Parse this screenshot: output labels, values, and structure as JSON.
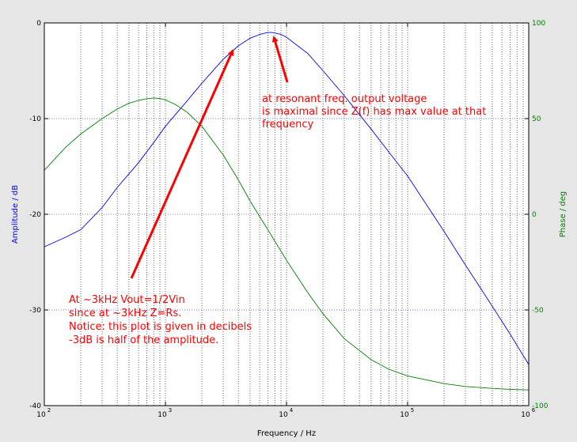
{
  "chart_data": {
    "type": "line",
    "xlabel": "Frequency / Hz",
    "ylabel_left": "Amplitude / dB",
    "ylabel_right": "Phase / deg",
    "x_scale": "log",
    "xlim": [
      100,
      1000000
    ],
    "ylim_left": [
      -40,
      0
    ],
    "ylim_right": [
      -100,
      100
    ],
    "x_ticks": [
      {
        "value": 100,
        "mantissa": "10",
        "exp": "2"
      },
      {
        "value": 1000,
        "mantissa": "10",
        "exp": "3"
      },
      {
        "value": 10000,
        "mantissa": "10",
        "exp": "4"
      },
      {
        "value": 100000,
        "mantissa": "10",
        "exp": "5"
      },
      {
        "value": 1000000,
        "mantissa": "10",
        "exp": "6"
      }
    ],
    "y_ticks_left": [
      "-40",
      "-30",
      "-20",
      "-10",
      "0"
    ],
    "y_ticks_right": [
      "-100",
      "-50",
      "0",
      "50",
      "100"
    ],
    "grid": true,
    "series": [
      {
        "axis": "left",
        "color": "#0000ff",
        "x": [
          100,
          150,
          200,
          300,
          400,
          600,
          800,
          1000,
          1500,
          2000,
          3000,
          4000,
          5000,
          6000,
          7000,
          7500,
          8000,
          9000,
          10000,
          15000,
          20000,
          30000,
          50000,
          70000,
          100000,
          200000,
          300000,
          500000,
          700000,
          1000000
        ],
        "y": [
          -23.4,
          -22.4,
          -21.6,
          -19.3,
          -17.2,
          -14.6,
          -12.5,
          -10.8,
          -8.2,
          -6.3,
          -3.8,
          -2.4,
          -1.6,
          -1.2,
          -1.0,
          -1.0,
          -1.05,
          -1.2,
          -1.5,
          -3.2,
          -5.0,
          -7.6,
          -11.1,
          -13.5,
          -16.0,
          -21.8,
          -25.3,
          -29.6,
          -32.5,
          -35.7
        ]
      },
      {
        "axis": "right",
        "color": "#008000",
        "x": [
          100,
          150,
          200,
          300,
          400,
          500,
          600,
          700,
          800,
          900,
          1000,
          1200,
          1500,
          2000,
          3000,
          4000,
          5000,
          7000,
          10000,
          15000,
          20000,
          30000,
          50000,
          70000,
          100000,
          200000,
          300000,
          500000,
          700000,
          1000000
        ],
        "y": [
          23,
          35,
          42,
          50,
          55,
          58,
          59.5,
          60.4,
          60.8,
          60.5,
          59.8,
          57.5,
          53.5,
          46,
          31,
          18,
          7,
          -8,
          -24,
          -41,
          -52,
          -65,
          -76,
          -81,
          -84.5,
          -88.5,
          -90,
          -91,
          -91.5,
          -91.8
        ]
      }
    ],
    "annotations": [
      {
        "lines": [
          "at resonant freq. output voltage",
          "is maximal  since  Z(f) has max value at that",
          "frequency"
        ]
      },
      {
        "lines": [
          "At ~3kHz Vout=1/2Vin",
          "since at ~3kHz Z=Rs.",
          "Notice: this plot is given in decibels",
          "-3dB is half of the amplitude."
        ]
      }
    ],
    "colors": {
      "annotation": "#ff0000",
      "left_axis": "#0000ff",
      "right_axis": "#008000",
      "grid": "#0000cc",
      "background": "#e6e6e6"
    }
  }
}
